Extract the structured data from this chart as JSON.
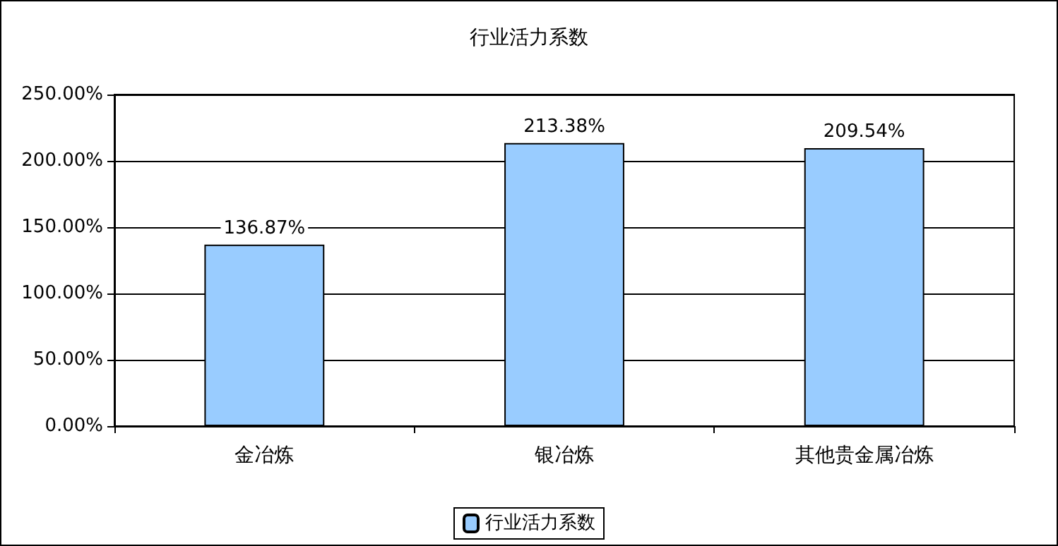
{
  "chart_data": {
    "type": "bar",
    "title": "行业活力系数",
    "categories": [
      "金冶炼",
      "银冶炼",
      "其他贵金属冶炼"
    ],
    "series": [
      {
        "name": "行业活力系数",
        "color": "#99ccff",
        "values": [
          136.87,
          213.38,
          209.54
        ],
        "value_labels": [
          "136.87%",
          "213.38%",
          "209.54%"
        ]
      }
    ],
    "ylim": [
      0,
      250
    ],
    "yticks": [
      {
        "value": 0,
        "label": "0.00%"
      },
      {
        "value": 50,
        "label": "50.00%"
      },
      {
        "value": 100,
        "label": "100.00%"
      },
      {
        "value": 150,
        "label": "150.00%"
      },
      {
        "value": 200,
        "label": "200.00%"
      },
      {
        "value": 250,
        "label": "250.00%"
      }
    ],
    "grid": "y",
    "legend": "bottom"
  }
}
